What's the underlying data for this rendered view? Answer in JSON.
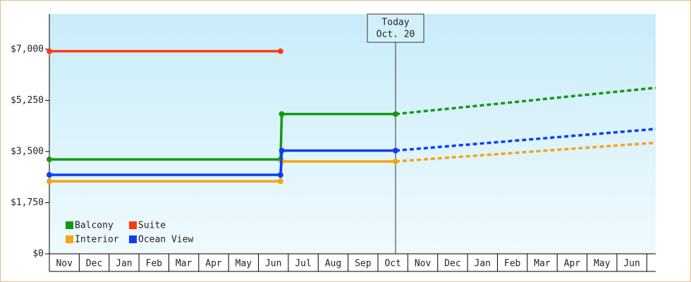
{
  "chart_data": {
    "type": "step-line",
    "categories": [
      "Nov",
      "Dec",
      "Jan",
      "Feb",
      "Mar",
      "Apr",
      "May",
      "Jun",
      "Jul",
      "Aug",
      "Sep",
      "Oct",
      "Nov",
      "Dec",
      "Jan",
      "Feb",
      "Mar",
      "Apr",
      "May",
      "Jun"
    ],
    "xlim": [
      0,
      20.3
    ],
    "ylim": [
      0,
      8200
    ],
    "yticks": [
      {
        "value": 0,
        "label": "$0"
      },
      {
        "value": 1750,
        "label": "$1,750"
      },
      {
        "value": 3500,
        "label": "$3,500"
      },
      {
        "value": 5250,
        "label": "$5,250"
      },
      {
        "value": 7000,
        "label": "$7,000"
      }
    ],
    "today": {
      "x": 11.59,
      "label": [
        "Today",
        "Oct. 20"
      ]
    },
    "series": [
      {
        "name": "Balcony",
        "color": "#129912",
        "x": [
          0,
          7.74,
          7.78,
          11.59,
          20.3
        ],
        "values": [
          3230,
          3230,
          4780,
          4780,
          5680
        ]
      },
      {
        "name": "Suite",
        "color": "#ff3a14",
        "x": [
          0,
          7.74
        ],
        "values": [
          6930,
          6930
        ]
      },
      {
        "name": "Interior",
        "color": "#f5a314",
        "x": [
          0,
          7.74,
          7.78,
          11.59,
          20.3
        ],
        "values": [
          2480,
          2480,
          3160,
          3160,
          3800
        ]
      },
      {
        "name": "Ocean View",
        "color": "#0b3df5",
        "x": [
          0,
          7.74,
          7.78,
          11.59,
          20.3
        ],
        "values": [
          2700,
          2700,
          3530,
          3530,
          4270
        ]
      }
    ]
  }
}
